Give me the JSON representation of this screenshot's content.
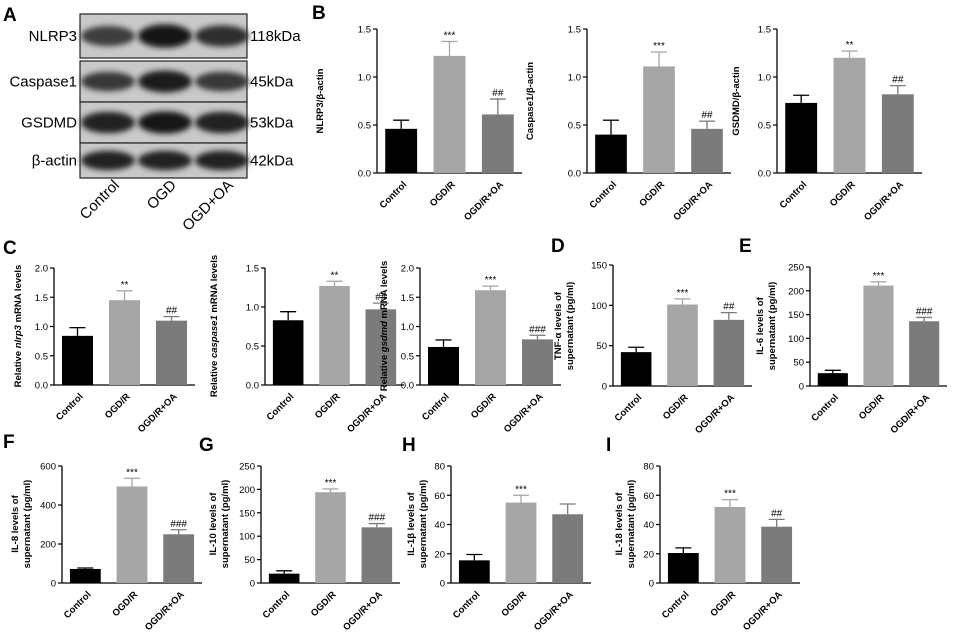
{
  "panel_letters": [
    "A",
    "B",
    "C",
    "D",
    "E",
    "F",
    "G",
    "H",
    "I"
  ],
  "blot": {
    "proteins": [
      "NLRP3",
      "Caspase1",
      "GSDMD",
      "β-actin"
    ],
    "sizes": [
      "118kDa",
      "45kDa",
      "53kDa",
      "42kDa"
    ],
    "lanes": [
      "Control",
      "OGD",
      "OGD+OA"
    ],
    "band_intensity": [
      [
        0.55,
        0.95,
        0.7
      ],
      [
        0.6,
        0.9,
        0.6
      ],
      [
        0.85,
        0.95,
        0.85
      ],
      [
        0.85,
        0.85,
        0.85
      ]
    ]
  },
  "chart_data": [
    {
      "type": "bar",
      "categories": [
        "Control",
        "OGD/R",
        "OGD/R+OA"
      ],
      "values": [
        0.46,
        1.22,
        0.61
      ],
      "errors": [
        0.09,
        0.15,
        0.16
      ],
      "marks": [
        "",
        "***",
        "##"
      ],
      "ylabel": "NLRP3/β-actin",
      "ylim": [
        0,
        1.5
      ],
      "ticks": [
        "0.0",
        "0.5",
        "1.0",
        "1.5"
      ]
    },
    {
      "type": "bar",
      "categories": [
        "Control",
        "OGD/R",
        "OGD/R+OA"
      ],
      "values": [
        0.4,
        1.11,
        0.46
      ],
      "errors": [
        0.15,
        0.15,
        0.08
      ],
      "marks": [
        "",
        "***",
        "##"
      ],
      "ylabel": "Caspase1/β-actin",
      "ylim": [
        0,
        1.5
      ],
      "ticks": [
        "0.0",
        "0.5",
        "1.0",
        "1.5"
      ]
    },
    {
      "type": "bar",
      "categories": [
        "Control",
        "OGD/R",
        "OGD/R+OA"
      ],
      "values": [
        0.73,
        1.2,
        0.82
      ],
      "errors": [
        0.08,
        0.07,
        0.09
      ],
      "marks": [
        "",
        "**",
        "##"
      ],
      "ylabel": "GSDMD/β-actin",
      "ylim": [
        0,
        1.5
      ],
      "ticks": [
        "0.0",
        "0.5",
        "1.0",
        "1.5"
      ]
    },
    {
      "type": "bar",
      "categories": [
        "Control",
        "OGD/R",
        "OGD/R+OA"
      ],
      "values": [
        0.84,
        1.45,
        1.1
      ],
      "errors": [
        0.14,
        0.16,
        0.07
      ],
      "marks": [
        "",
        "**",
        "##"
      ],
      "ylabel_parts": [
        "Relative ",
        "nlrp3",
        " mRNA levels"
      ],
      "ylim": [
        0,
        2.0
      ],
      "ticks": [
        "0.0",
        "0.5",
        "1.0",
        "1.5",
        "2.0"
      ]
    },
    {
      "type": "bar",
      "categories": [
        "Control",
        "OGD/R",
        "OGD/R+OA"
      ],
      "values": [
        0.83,
        1.27,
        0.97
      ],
      "errors": [
        0.11,
        0.06,
        0.08
      ],
      "marks": [
        "",
        "**",
        "##"
      ],
      "ylabel_parts": [
        "Relative ",
        "caspase1",
        " mRNA levels"
      ],
      "ylim": [
        0,
        1.5
      ],
      "ticks": [
        "0.0",
        "0.5",
        "1.0",
        "1.5"
      ]
    },
    {
      "type": "bar",
      "categories": [
        "Control",
        "OGD/R",
        "OGD/R+OA"
      ],
      "values": [
        0.65,
        1.62,
        0.78
      ],
      "errors": [
        0.12,
        0.07,
        0.07
      ],
      "marks": [
        "",
        "***",
        "###"
      ],
      "ylabel_parts": [
        "Relative ",
        "gsdmd",
        " mRNA levels"
      ],
      "ylim": [
        0,
        2.0
      ],
      "ticks": [
        "0.0",
        "0.5",
        "1.0",
        "1.5",
        "2.0"
      ]
    },
    {
      "type": "bar",
      "categories": [
        "Control",
        "OGD/R",
        "OGD/R+OA"
      ],
      "values": [
        42,
        101,
        82
      ],
      "errors": [
        6,
        7,
        9
      ],
      "marks": [
        "",
        "***",
        "##"
      ],
      "ylabel_lines": [
        "TNF-α levels of",
        "supernatant (pg/ml)"
      ],
      "ylim": [
        0,
        150
      ],
      "ticks": [
        "0",
        "50",
        "100",
        "150"
      ]
    },
    {
      "type": "bar",
      "categories": [
        "Control",
        "OGD/R",
        "OGD/R+OA"
      ],
      "values": [
        27,
        211,
        136
      ],
      "errors": [
        6,
        8,
        8
      ],
      "marks": [
        "",
        "***",
        "###"
      ],
      "ylabel_lines": [
        "IL-6 levels of",
        "supernatant (pg/ml)"
      ],
      "ylim": [
        0,
        250
      ],
      "ticks": [
        "0",
        "50",
        "100",
        "150",
        "200",
        "250"
      ]
    },
    {
      "type": "bar",
      "categories": [
        "Control",
        "OGD/R",
        "OGD/R+OA"
      ],
      "values": [
        72,
        495,
        250
      ],
      "errors": [
        5,
        42,
        23
      ],
      "marks": [
        "",
        "***",
        "###"
      ],
      "ylabel_lines": [
        "IL-8 levels of",
        "supernatant (pg/ml)"
      ],
      "ylim": [
        0,
        600
      ],
      "ticks": [
        "0",
        "200",
        "400",
        "600"
      ]
    },
    {
      "type": "bar",
      "categories": [
        "Control",
        "OGD/R",
        "OGD/R+OA"
      ],
      "values": [
        20,
        194,
        119
      ],
      "errors": [
        6,
        7,
        8
      ],
      "marks": [
        "",
        "***",
        "###"
      ],
      "ylabel_lines": [
        "IL-10 levels of",
        "supernatant (pg/ml)"
      ],
      "ylim": [
        0,
        250
      ],
      "ticks": [
        "0",
        "50",
        "100",
        "150",
        "200",
        "250"
      ]
    },
    {
      "type": "bar",
      "categories": [
        "Control",
        "OGD/R",
        "OGD/R+OA"
      ],
      "values": [
        15.5,
        55,
        47
      ],
      "errors": [
        4,
        5,
        7
      ],
      "marks": [
        "",
        "***",
        ""
      ],
      "ylabel_lines": [
        "IL-1β levels of",
        "supernatant (pg/ml)"
      ],
      "ylim": [
        0,
        80
      ],
      "ticks": [
        "0",
        "20",
        "40",
        "60",
        "80"
      ]
    },
    {
      "type": "bar",
      "categories": [
        "Control",
        "OGD/R",
        "OGD/R+OA"
      ],
      "values": [
        20.5,
        52,
        38.5
      ],
      "errors": [
        3.5,
        5,
        5
      ],
      "marks": [
        "",
        "***",
        "##"
      ],
      "ylabel_lines": [
        "IL-18 levels of",
        "supernatant (pg/ml)"
      ],
      "ylim": [
        0,
        80
      ],
      "ticks": [
        "0",
        "20",
        "40",
        "60",
        "80"
      ]
    }
  ]
}
